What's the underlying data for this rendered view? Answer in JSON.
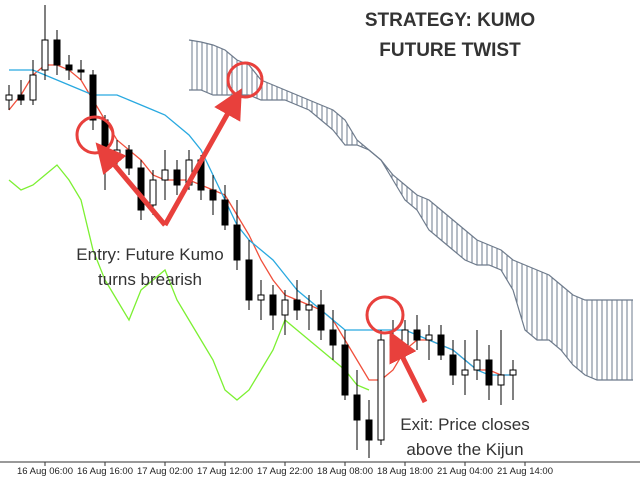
{
  "chart_data": {
    "type": "candlestick",
    "title": "STRATEGY: KUMO FUTURE TWIST",
    "annotations": [
      "Entry: Future Kumo turns brearish",
      "Exit: Price closes above the Kijun"
    ],
    "categories": [
      null,
      null,
      null,
      "16 Aug 06:00",
      null,
      null,
      null,
      null,
      "16 Aug 16:00",
      null,
      null,
      null,
      null,
      "17 Aug 02:00",
      null,
      null,
      null,
      null,
      "17 Aug 12:00",
      null,
      null,
      null,
      null,
      "17 Aug 22:00",
      null,
      null,
      null,
      null,
      "18 Aug 08:00",
      null,
      null,
      null,
      null,
      "18 Aug 18:00",
      null,
      null,
      null,
      null,
      "21 Aug 04:00",
      null,
      null,
      null,
      null,
      "21 Aug 14:00",
      null,
      null,
      null,
      null,
      null,
      null,
      null,
      null,
      null
    ],
    "open": [
      360,
      365,
      360,
      390,
      420,
      395,
      390,
      385,
      340,
      305,
      310,
      292,
      255,
      280,
      290,
      275,
      300,
      270,
      260,
      235,
      200,
      160,
      165,
      145,
      160,
      150,
      155,
      130,
      115,
      65,
      40,
      20,
      120,
      115,
      130,
      120,
      125,
      105,
      85,
      90,
      100,
      75,
      85,
      null,
      null,
      null,
      null,
      null,
      null,
      null,
      null,
      null,
      null
    ],
    "high": [
      375,
      380,
      400,
      455,
      430,
      405,
      400,
      390,
      345,
      320,
      315,
      300,
      290,
      310,
      300,
      310,
      305,
      285,
      275,
      260,
      220,
      180,
      175,
      170,
      180,
      165,
      170,
      150,
      130,
      90,
      60,
      130,
      140,
      140,
      145,
      135,
      135,
      120,
      120,
      130,
      115,
      130,
      100,
      null,
      null,
      null,
      null,
      null,
      null,
      null,
      null,
      null,
      null
    ],
    "low": [
      350,
      355,
      355,
      380,
      385,
      380,
      380,
      330,
      270,
      290,
      285,
      240,
      245,
      260,
      265,
      270,
      260,
      245,
      230,
      190,
      150,
      140,
      130,
      125,
      140,
      130,
      120,
      100,
      60,
      10,
      2,
      15,
      100,
      95,
      110,
      100,
      100,
      75,
      65,
      80,
      60,
      55,
      60,
      null,
      null,
      null,
      null,
      null,
      null,
      null,
      null,
      null,
      null
    ],
    "close": [
      365,
      360,
      385,
      420,
      395,
      390,
      388,
      340,
      300,
      310,
      292,
      250,
      280,
      290,
      275,
      300,
      270,
      260,
      235,
      200,
      160,
      165,
      145,
      160,
      150,
      155,
      130,
      115,
      65,
      40,
      20,
      120,
      115,
      130,
      120,
      125,
      105,
      85,
      90,
      100,
      75,
      85,
      90,
      null,
      null,
      null,
      null,
      null,
      null,
      null,
      null,
      null,
      null
    ],
    "series": [
      {
        "color": "#f0503c",
        "values": [
          350,
          365,
          385,
          395,
          395,
          390,
          380,
          360,
          340,
          320,
          310,
          300,
          285,
          280,
          280,
          280,
          275,
          270,
          265,
          245,
          225,
          200,
          180,
          165,
          160,
          155,
          150,
          140,
          120,
          100,
          80,
          80,
          90,
          110,
          120,
          120,
          115,
          110,
          100,
          90,
          90,
          85,
          85,
          null,
          null,
          null,
          null,
          null,
          null,
          null,
          null,
          null,
          null
        ]
      },
      {
        "color": "#29a9e0",
        "values": [
          390,
          390,
          390,
          385,
          380,
          375,
          370,
          365,
          365,
          365,
          360,
          355,
          350,
          345,
          335,
          325,
          310,
          285,
          260,
          235,
          220,
          210,
          200,
          185,
          170,
          160,
          150,
          140,
          130,
          130,
          130,
          130,
          130,
          130,
          125,
          120,
          115,
          110,
          100,
          90,
          85,
          85,
          85,
          null,
          null,
          null,
          null,
          null,
          null,
          null,
          null,
          null,
          null
        ]
      },
      {
        "color": "#7cf032",
        "values": [
          280,
          270,
          275,
          285,
          295,
          280,
          260,
          210,
          180,
          160,
          140,
          170,
          180,
          190,
          160,
          140,
          120,
          100,
          70,
          60,
          70,
          90,
          110,
          140,
          130,
          120,
          110,
          100,
          90,
          75,
          70,
          null,
          null,
          null,
          null,
          null,
          null,
          null,
          null,
          null,
          null,
          null,
          null,
          null,
          null,
          null,
          null,
          null,
          null,
          null,
          null,
          null,
          null
        ]
      },
      {
        "color": "#6e7b8c",
        "values": [
          null,
          null,
          null,
          null,
          null,
          null,
          null,
          null,
          null,
          null,
          null,
          null,
          null,
          null,
          null,
          420,
          418,
          415,
          410,
          400,
          395,
          380,
          375,
          370,
          365,
          360,
          355,
          350,
          340,
          320,
          310,
          300,
          285,
          275,
          265,
          260,
          250,
          240,
          230,
          220,
          215,
          210,
          200,
          195,
          190,
          185,
          175,
          165,
          160,
          160,
          160,
          160,
          160
        ]
      },
      {
        "color": "#6e7b8c",
        "values": [
          null,
          null,
          null,
          null,
          null,
          null,
          null,
          null,
          null,
          null,
          null,
          null,
          null,
          null,
          null,
          370,
          370,
          365,
          365,
          365,
          365,
          360,
          360,
          360,
          355,
          350,
          340,
          330,
          315,
          315,
          310,
          300,
          280,
          260,
          250,
          230,
          220,
          210,
          200,
          195,
          195,
          190,
          170,
          130,
          120,
          120,
          110,
          95,
          85,
          80,
          80,
          80,
          80
        ]
      }
    ],
    "ylim": [
      0,
      460
    ]
  }
}
